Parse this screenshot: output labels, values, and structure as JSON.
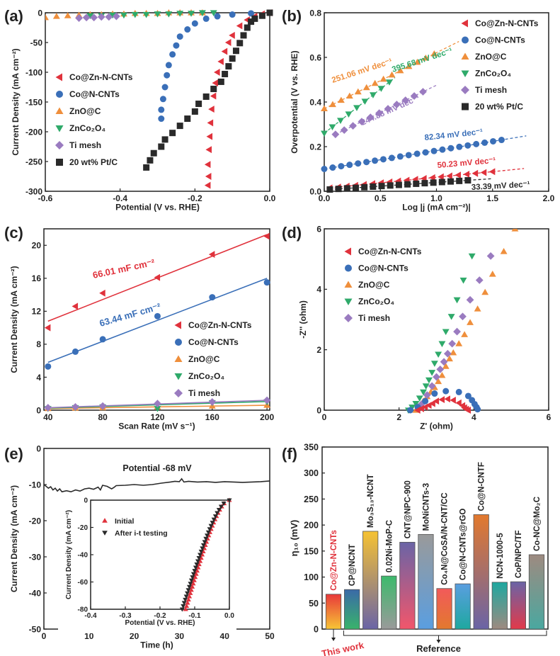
{
  "colors": {
    "red": "#e0323c",
    "blue": "#3a6fb8",
    "orange": "#ef8f3c",
    "green": "#2faa6a",
    "purple": "#9a7bc0",
    "black": "#2a2a2a",
    "reference_label": "#e0323c"
  },
  "chart_data": [
    {
      "id": "a",
      "panel_label": "(a)",
      "type": "scatter",
      "xlabel": "Potential (V vs. RHE)",
      "ylabel": "Current Density (mA cm⁻²)",
      "xlim": [
        -0.6,
        0.0
      ],
      "ylim": [
        -300,
        0
      ],
      "xticks": [
        -0.6,
        -0.4,
        -0.2,
        0.0
      ],
      "xtick_labels": [
        "-0.6",
        "-0.4",
        "-0.2",
        "0.0"
      ],
      "yticks": [
        -300,
        -250,
        -200,
        -150,
        -100,
        -50,
        0
      ],
      "ytick_labels": [
        "-300",
        "-250",
        "-200",
        "-150",
        "-100",
        "-50",
        "0"
      ],
      "legend_position": "center-left",
      "series": [
        {
          "name": "Co@Zn-N-CNTs",
          "marker": "triangle-left",
          "color": "red",
          "x": [
            0,
            -0.02,
            -0.04,
            -0.06,
            -0.08,
            -0.1,
            -0.11,
            -0.12,
            -0.13,
            -0.14,
            -0.145,
            -0.15,
            -0.155,
            -0.158,
            -0.16,
            -0.162,
            -0.165,
            -0.163,
            -0.165
          ],
          "y": [
            0,
            -2,
            -6,
            -12,
            -22,
            -38,
            -50,
            -65,
            -82,
            -100,
            -118,
            -140,
            -162,
            -185,
            -208,
            -230,
            -255,
            -275,
            -290
          ]
        },
        {
          "name": "Co@N-CNTs",
          "marker": "circle",
          "color": "blue",
          "x": [
            0,
            -0.05,
            -0.1,
            -0.14,
            -0.17,
            -0.2,
            -0.22,
            -0.24,
            -0.25,
            -0.26,
            -0.27,
            -0.275,
            -0.28,
            -0.285,
            -0.29,
            -0.29
          ],
          "y": [
            0,
            -1,
            -3,
            -6,
            -10,
            -18,
            -28,
            -40,
            -55,
            -70,
            -88,
            -105,
            -125,
            -145,
            -163,
            -178
          ]
        },
        {
          "name": "ZnO@C",
          "marker": "triangle-up",
          "color": "orange",
          "x": [
            -0.6,
            -0.57,
            -0.54,
            -0.51,
            -0.48,
            -0.45,
            -0.42,
            -0.39,
            -0.36,
            -0.33,
            -0.3,
            -0.27,
            -0.24,
            -0.21,
            -0.18
          ],
          "y": [
            -8,
            -6,
            -5,
            -4,
            -3,
            -3,
            -2,
            -2,
            -1,
            -1,
            -1,
            0,
            0,
            0,
            0
          ]
        },
        {
          "name": "ZnCo₂O₄",
          "marker": "triangle-down",
          "color": "green",
          "x": [
            -0.48,
            -0.45,
            -0.42,
            -0.39,
            -0.36,
            -0.33,
            -0.3,
            -0.27,
            -0.24,
            -0.21,
            -0.18,
            -0.15
          ],
          "y": [
            -5,
            -5,
            -4,
            -4,
            -3,
            -3,
            -2,
            -2,
            -1,
            -1,
            0,
            0
          ]
        },
        {
          "name": "Ti mesh",
          "marker": "diamond",
          "color": "purple",
          "x": [
            -0.51,
            -0.49,
            -0.47,
            -0.45,
            -0.43,
            -0.41
          ],
          "y": [
            -9,
            -8,
            -8,
            -7,
            -7,
            -6
          ]
        },
        {
          "name": "20 wt% Pt/C",
          "marker": "square",
          "color": "black",
          "x": [
            0,
            -0.02,
            -0.04,
            -0.05,
            -0.06,
            -0.07,
            -0.08,
            -0.09,
            -0.1,
            -0.11,
            -0.12,
            -0.13,
            -0.15,
            -0.17,
            -0.19,
            -0.2,
            -0.22,
            -0.24,
            -0.26,
            -0.28,
            -0.29,
            -0.31,
            -0.32,
            -0.33
          ],
          "y": [
            0,
            -5,
            -10,
            -15,
            -25,
            -38,
            -51,
            -64,
            -77,
            -90,
            -103,
            -116,
            -128,
            -141,
            -153,
            -166,
            -178,
            -190,
            -202,
            -213,
            -225,
            -236,
            -248,
            -260
          ]
        }
      ]
    },
    {
      "id": "b",
      "panel_label": "(b)",
      "type": "scatter",
      "xlabel": "Log |j (mA cm⁻²)|",
      "ylabel": "Overpotential (V vs. RHE)",
      "xlim": [
        0,
        2.0
      ],
      "ylim": [
        0,
        0.8
      ],
      "xticks": [
        0,
        0.5,
        1.0,
        1.5,
        2.0
      ],
      "xtick_labels": [
        "0.0",
        "0.5",
        "1.0",
        "1.5",
        "2.0"
      ],
      "yticks": [
        0,
        0.2,
        0.4,
        0.6,
        0.8
      ],
      "ytick_labels": [
        "0.0",
        "0.2",
        "0.4",
        "0.6",
        "0.8"
      ],
      "legend_position": "top-right",
      "series": [
        {
          "name": "Co@Zn-N-CNTs",
          "marker": "triangle-left",
          "color": "red",
          "x0": 0.05,
          "x1": 1.5,
          "y0": 0.015,
          "slope": 0.05023,
          "fit_x1": 1.78,
          "tafel": "50.23 mV dec⁻¹"
        },
        {
          "name": "Co@N-CNTs",
          "marker": "circle",
          "color": "blue",
          "x0": 0.0,
          "x1": 1.58,
          "y0": 0.1,
          "slope": 0.08234,
          "fit_x1": 1.8,
          "tafel": "82.34 mV dec⁻¹"
        },
        {
          "name": "ZnO@C",
          "marker": "triangle-up",
          "color": "orange",
          "x0": 0.0,
          "x1": 0.98,
          "y0": 0.37,
          "slope": 0.25106,
          "fit_x1": 1.2,
          "tafel": "251.06 mV dec⁻¹"
        },
        {
          "name": "ZnCo₂O₄",
          "marker": "triangle-down",
          "color": "green",
          "x0": 0.0,
          "x1": 0.58,
          "y0": 0.26,
          "slope": 0.39568,
          "fit_x1": 0.63,
          "tafel": "395.68 mV dec⁻¹"
        },
        {
          "name": "Ti mesh",
          "marker": "diamond",
          "color": "purple",
          "x0": 0.1,
          "x1": 0.88,
          "y0": 0.255,
          "slope": 0.24488,
          "fit_x1": 1.0,
          "tafel": "244.88 mV dec⁻¹"
        },
        {
          "name": "20 wt% Pt/C",
          "marker": "square",
          "color": "black",
          "x0": 0.05,
          "x1": 1.28,
          "y0": 0.008,
          "slope": 0.03339,
          "fit_x1": 1.5,
          "tafel": "33.39 mV dec⁻¹"
        }
      ]
    },
    {
      "id": "c",
      "panel_label": "(c)",
      "type": "scatter",
      "xlabel": "Scan Rate (mV s⁻¹)",
      "ylabel": "Current Density (mA cm⁻²)",
      "xlim": [
        37,
        202
      ],
      "ylim": [
        0,
        22
      ],
      "xticks": [
        40,
        80,
        120,
        160,
        200
      ],
      "xtick_labels": [
        "40",
        "80",
        "120",
        "160",
        "200"
      ],
      "yticks": [
        0,
        4,
        8,
        12,
        16,
        20
      ],
      "ytick_labels": [
        "0",
        "4",
        "8",
        "12",
        "16",
        "20"
      ],
      "legend_position": "center-right",
      "x": [
        40,
        60,
        80,
        120,
        160,
        200
      ],
      "series": [
        {
          "name": "Co@Zn-N-CNTs",
          "marker": "triangle-left",
          "color": "red",
          "y": [
            10.0,
            12.6,
            14.2,
            16.1,
            18.9,
            21.1
          ],
          "fit": [
            10.8,
            21.3
          ],
          "annotation": "66.01 mF cm⁻²"
        },
        {
          "name": "Co@N-CNTs",
          "marker": "circle",
          "color": "blue",
          "y": [
            5.3,
            7.1,
            8.6,
            11.4,
            13.7,
            15.5
          ],
          "fit": [
            5.8,
            16.0
          ],
          "annotation": "63.44 mF cm⁻²"
        },
        {
          "name": "ZnO@C",
          "marker": "triangle-up",
          "color": "orange",
          "y": [
            0.2,
            0.25,
            0.3,
            0.4,
            0.5,
            0.6
          ],
          "fit": [
            0.2,
            0.6
          ]
        },
        {
          "name": "ZnCo₂O₄",
          "marker": "triangle-down",
          "color": "green",
          "y": [
            0.2,
            0.3,
            0.4,
            0.2,
            0.9,
            1.0
          ],
          "fit": [
            0.25,
            1.05
          ]
        },
        {
          "name": "Ti mesh",
          "marker": "diamond",
          "color": "purple",
          "y": [
            0.3,
            0.4,
            0.5,
            0.8,
            1.0,
            1.2
          ],
          "fit": [
            0.3,
            1.2
          ]
        }
      ]
    },
    {
      "id": "d",
      "panel_label": "(d)",
      "type": "scatter",
      "xlabel": "Z' (ohm)",
      "ylabel": "-Z'' (ohm)",
      "xlim": [
        0,
        6
      ],
      "ylim": [
        0,
        6
      ],
      "xticks": [
        0,
        2,
        4,
        6
      ],
      "xtick_labels": [
        "0",
        "2",
        "4",
        "6"
      ],
      "yticks": [
        0,
        2,
        4,
        6
      ],
      "ytick_labels": [
        "0",
        "2",
        "4",
        "6"
      ],
      "legend_position": "top-left",
      "series": [
        {
          "name": "Co@Zn-N-CNTs",
          "marker": "triangle-left",
          "color": "red",
          "x": [
            2.5,
            2.6,
            2.7,
            2.8,
            2.9,
            3.0,
            3.15,
            3.3,
            3.45,
            3.6,
            3.7,
            3.75,
            3.8,
            3.85
          ],
          "y": [
            0,
            0.05,
            0.1,
            0.16,
            0.22,
            0.3,
            0.35,
            0.37,
            0.33,
            0.24,
            0.15,
            0.08,
            0.03,
            0
          ]
        },
        {
          "name": "Co@N-CNTs",
          "marker": "circle",
          "color": "blue",
          "x": [
            2.3,
            2.5,
            2.7,
            2.95,
            3.25,
            3.6,
            3.85,
            3.95,
            4.02,
            4.07,
            4.1
          ],
          "y": [
            0,
            0.1,
            0.3,
            0.55,
            0.63,
            0.6,
            0.47,
            0.33,
            0.2,
            0.1,
            0.03
          ]
        },
        {
          "name": "ZnO@C",
          "marker": "triangle-up",
          "color": "orange",
          "x": [
            2.45,
            2.55,
            2.65,
            2.75,
            2.85,
            2.95,
            3.05,
            3.15,
            3.25,
            3.35,
            3.45,
            3.6,
            3.75,
            3.9,
            4.1,
            4.3,
            4.5,
            4.8,
            5.1
          ],
          "y": [
            0,
            0.15,
            0.3,
            0.45,
            0.6,
            0.75,
            0.95,
            1.15,
            1.45,
            1.7,
            1.9,
            2.2,
            2.5,
            2.9,
            3.35,
            3.9,
            4.5,
            5.25,
            6.0
          ]
        },
        {
          "name": "ZnCo₂O₄",
          "marker": "triangle-down",
          "color": "green",
          "x": [
            2.25,
            2.35,
            2.45,
            2.55,
            2.65,
            2.72,
            2.8,
            2.88,
            2.95,
            3.05,
            3.15,
            3.25,
            3.4,
            3.55,
            3.72,
            3.95
          ],
          "y": [
            0,
            0.1,
            0.22,
            0.4,
            0.6,
            0.8,
            1.0,
            1.25,
            1.55,
            1.85,
            2.2,
            2.6,
            3.1,
            3.65,
            4.3,
            5.1
          ]
        },
        {
          "name": "Ti mesh",
          "marker": "diamond",
          "color": "purple",
          "x": [
            2.6,
            2.75,
            2.88,
            3.0,
            3.1,
            3.2,
            3.3,
            3.42,
            3.55,
            3.7,
            3.9,
            4.15,
            4.45
          ],
          "y": [
            0.2,
            0.5,
            0.8,
            1.1,
            1.35,
            1.6,
            1.87,
            2.2,
            2.6,
            3.1,
            3.65,
            4.3,
            5.1
          ]
        }
      ]
    },
    {
      "id": "e",
      "panel_label": "(e)",
      "type": "line",
      "xlabel": "Time (h)",
      "ylabel": "Current Density (mA cm⁻²)",
      "xlim": [
        0,
        50
      ],
      "ylim": [
        -50,
        0
      ],
      "xticks": [
        0,
        10,
        20,
        30,
        40,
        50
      ],
      "xtick_labels": [
        "0",
        "10",
        "20",
        "30",
        "40",
        "50"
      ],
      "yticks": [
        -50,
        -40,
        -30,
        -20,
        -10,
        0
      ],
      "ytick_labels": [
        "-50",
        "-40",
        "-30",
        "-20",
        "-10",
        "0"
      ],
      "annotation": "Potential -68 mV",
      "series": [
        {
          "name": "i-t",
          "color": "black",
          "x": [
            0,
            0.5,
            1,
            1.5,
            2,
            2.5,
            3,
            3.5,
            4,
            5,
            6,
            7,
            8,
            9,
            10,
            11,
            12,
            12.5,
            13,
            14,
            15,
            15.5,
            16,
            18,
            20,
            22,
            24,
            26,
            28,
            29,
            30,
            30.5,
            31,
            32,
            34,
            36,
            38,
            40,
            42,
            44,
            46,
            48,
            50
          ],
          "y": [
            -10,
            -10.5,
            -11,
            -10.6,
            -11.5,
            -11,
            -11.8,
            -11.2,
            -12,
            -11.7,
            -12,
            -11.5,
            -11.8,
            -11.2,
            -11,
            -11.3,
            -10.7,
            -11.5,
            -10.2,
            -10.5,
            -11.2,
            -10.8,
            -10.3,
            -10.2,
            -10,
            -10.2,
            -10,
            -9.6,
            -9.3,
            -9.1,
            -9.2,
            -8.4,
            -9.3,
            -9.1,
            -9.3,
            -9.2,
            -9.4,
            -9.2,
            -9.3,
            -9.4,
            -9.3,
            -9.2,
            -9
          ]
        }
      ],
      "inset": {
        "xlabel": "Potential (V vs. RHE)",
        "ylabel": "Current Density (mA cm⁻²)",
        "xlim": [
          -0.4,
          0.0
        ],
        "ylim": [
          -80,
          0
        ],
        "xticks": [
          -0.4,
          -0.3,
          -0.2,
          -0.1,
          0.0
        ],
        "xtick_labels": [
          "-0.4",
          "-0.3",
          "-0.2",
          "-0.1",
          "0.0"
        ],
        "yticks": [
          -80,
          -60,
          -40,
          -20,
          0
        ],
        "ytick_labels": [
          "-80",
          "-60",
          "-40",
          "-20",
          "0"
        ],
        "legend_position": "top-left",
        "series": [
          {
            "name": "Initial",
            "marker": "triangle-up",
            "color": "red",
            "v80": -0.126
          },
          {
            "name": "After i-t testing",
            "marker": "triangle-down",
            "color": "black",
            "v80": -0.136
          }
        ]
      }
    },
    {
      "id": "f",
      "panel_label": "(f)",
      "type": "bar",
      "ylabel": "η₁₀ (mV)",
      "ylim": [
        0,
        350
      ],
      "yticks": [
        0,
        50,
        100,
        150,
        200,
        250,
        300,
        350
      ],
      "ytick_labels": [
        "0",
        "50",
        "100",
        "150",
        "200",
        "250",
        "300",
        "350"
      ],
      "categories": [
        "Co@Zn-N-CNTs",
        "CP@NCNT",
        "Mo₃S₁₃-NCNT",
        "0.02Ni-MoP-C",
        "CNT@NPC-900",
        "MoNiCNTs-3",
        "Co₄N@CoSA/N-CNT/CC",
        "Co@N-CNTs@rGO",
        "Co@N-CNTF",
        "NCN-1000-5",
        "CoP/NPC/TF",
        "Co-NC@Mo₂C"
      ],
      "values": [
        67,
        76,
        188,
        102,
        167,
        182,
        78,
        87,
        220,
        90,
        91,
        143
      ],
      "gradients": [
        [
          "#e8383a",
          "#f7c535"
        ],
        [
          "#3a6aa8",
          "#39b36b"
        ],
        [
          "#f6c233",
          "#6a64a6"
        ],
        [
          "#3cba6c",
          "#9a9a9a"
        ],
        [
          "#6a64a6",
          "#f2566b"
        ],
        [
          "#9a9a9a",
          "#5a9ee0"
        ],
        [
          "#f25a5a",
          "#e2792e"
        ],
        [
          "#5a9ee0",
          "#1ea8a0"
        ],
        [
          "#e2792e",
          "#6a64a6"
        ],
        [
          "#1ea8a0",
          "#9e8a80"
        ],
        [
          "#6a64a6",
          "#e23a4a"
        ],
        [
          "#9e8a80",
          "#4aa8a0"
        ]
      ],
      "group_labels": {
        "this_work": "This work",
        "reference": "Reference"
      }
    }
  ]
}
